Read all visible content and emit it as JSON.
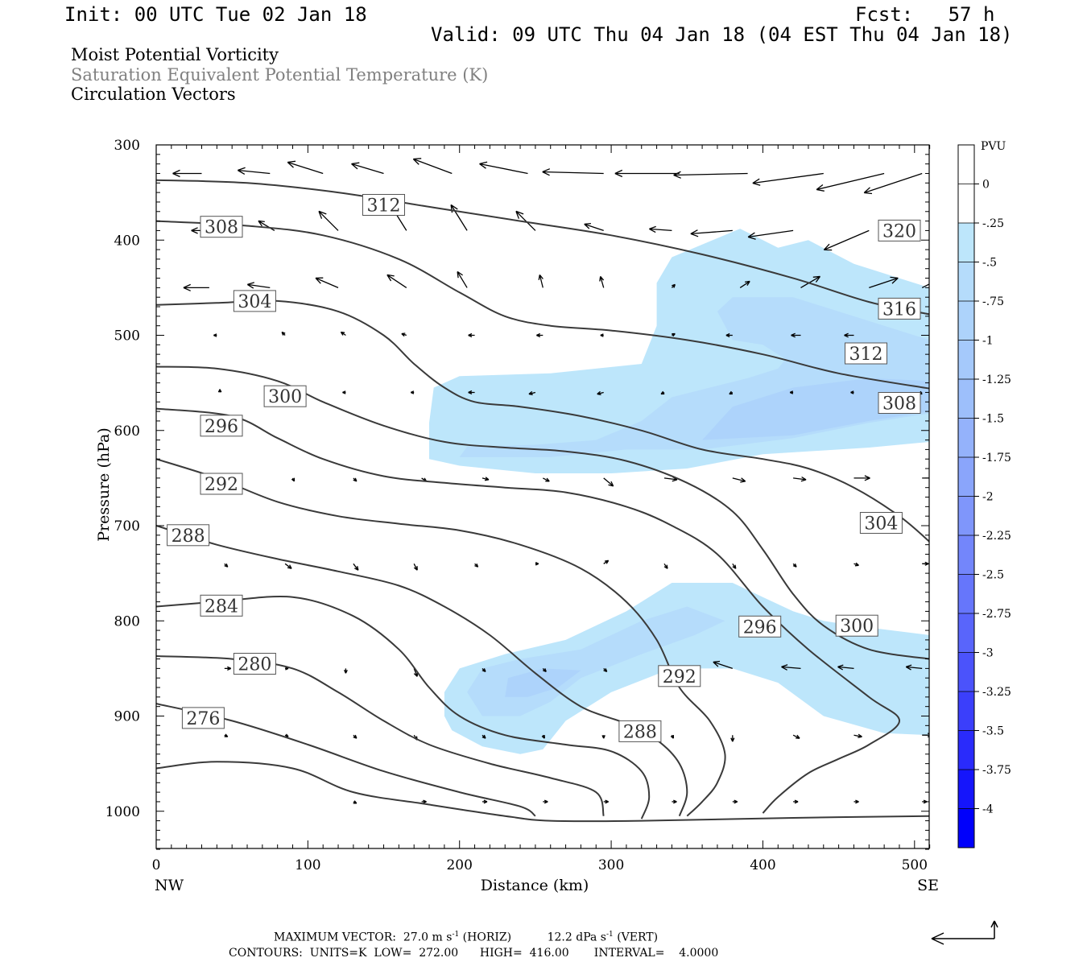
{
  "header": {
    "init": "Init: 00 UTC Tue 02 Jan 18",
    "fcst": "Fcst:   57 h",
    "valid": "Valid: 09 UTC Thu 04 Jan 18 (04 EST Thu 04 Jan 18)"
  },
  "titles": {
    "line1": "Moist Potential Vorticity",
    "line2": "Saturation Equivalent Potential Temperature (K)",
    "line3": "Circulation Vectors"
  },
  "chart_data": {
    "type": "contour",
    "xlabel": "Distance (km)",
    "ylabel": "Pressure (hPa)",
    "x_ticks": [
      "0",
      "100",
      "200",
      "300",
      "400",
      "500"
    ],
    "y_ticks": [
      "300",
      "400",
      "500",
      "600",
      "700",
      "800",
      "900",
      "1000"
    ],
    "xlim": [
      0,
      510
    ],
    "ylim": [
      300,
      1040
    ],
    "x_end_labels": {
      "left": "NW",
      "right": "SE"
    },
    "colorbar": {
      "unit": "PVU",
      "labels": [
        "0",
        "-.25",
        "-.5",
        "-.75",
        "-1",
        "-1.25",
        "-1.5",
        "-1.75",
        "-2",
        "-2.25",
        "-2.5",
        "-2.75",
        "-3",
        "-3.25",
        "-3.5",
        "-3.75",
        "-4"
      ],
      "colors": [
        "#ffffff",
        "#ffffff",
        "#bde6fb",
        "#b5dcfb",
        "#add3fb",
        "#a5c9fb",
        "#9dbffb",
        "#94b2fb",
        "#8aa5fb",
        "#7f96fb",
        "#7386fb",
        "#6676fb",
        "#5965fb",
        "#4b53fb",
        "#3b3ffb",
        "#2a2bfb",
        "#1515fb",
        "#0000fb"
      ]
    },
    "contour_labels": [
      {
        "text": "312",
        "x": 150,
        "p": 363
      },
      {
        "text": "308",
        "x": 43,
        "p": 386
      },
      {
        "text": "304",
        "x": 65,
        "p": 464
      },
      {
        "text": "300",
        "x": 85,
        "p": 564
      },
      {
        "text": "296",
        "x": 43,
        "p": 595
      },
      {
        "text": "292",
        "x": 43,
        "p": 656
      },
      {
        "text": "288",
        "x": 21,
        "p": 710
      },
      {
        "text": "284",
        "x": 43,
        "p": 784
      },
      {
        "text": "280",
        "x": 65,
        "p": 845
      },
      {
        "text": "276",
        "x": 31,
        "p": 902
      },
      {
        "text": "320",
        "x": 490,
        "p": 390
      },
      {
        "text": "316",
        "x": 490,
        "p": 472
      },
      {
        "text": "312",
        "x": 468,
        "p": 519
      },
      {
        "text": "308",
        "x": 490,
        "p": 571
      },
      {
        "text": "304",
        "x": 478,
        "p": 697
      },
      {
        "text": "300",
        "x": 462,
        "p": 805
      },
      {
        "text": "296",
        "x": 398,
        "p": 806
      },
      {
        "text": "292",
        "x": 345,
        "p": 858
      },
      {
        "text": "288",
        "x": 319,
        "p": 916
      }
    ],
    "contours": [
      {
        "level": 312,
        "pts": [
          [
            0,
            337
          ],
          [
            60,
            340
          ],
          [
            120,
            350
          ],
          [
            180,
            365
          ],
          [
            240,
            380
          ],
          [
            300,
            395
          ],
          [
            360,
            415
          ],
          [
            420,
            440
          ],
          [
            470,
            465
          ],
          [
            510,
            478
          ]
        ]
      },
      {
        "level": 308,
        "pts": [
          [
            0,
            380
          ],
          [
            60,
            385
          ],
          [
            110,
            395
          ],
          [
            160,
            420
          ],
          [
            200,
            455
          ],
          [
            230,
            480
          ],
          [
            260,
            490
          ],
          [
            300,
            495
          ],
          [
            350,
            505
          ],
          [
            400,
            520
          ],
          [
            450,
            540
          ],
          [
            510,
            556
          ]
        ]
      },
      {
        "level": 304,
        "pts": [
          [
            0,
            468
          ],
          [
            40,
            466
          ],
          [
            80,
            464
          ],
          [
            120,
            475
          ],
          [
            150,
            500
          ],
          [
            170,
            530
          ],
          [
            190,
            555
          ],
          [
            210,
            570
          ],
          [
            240,
            575
          ],
          [
            280,
            585
          ],
          [
            320,
            600
          ],
          [
            360,
            620
          ],
          [
            400,
            630
          ],
          [
            430,
            640
          ],
          [
            460,
            660
          ],
          [
            490,
            690
          ],
          [
            510,
            717
          ]
        ]
      },
      {
        "level": 300,
        "pts": [
          [
            0,
            533
          ],
          [
            40,
            535
          ],
          [
            80,
            548
          ],
          [
            110,
            570
          ],
          [
            150,
            595
          ],
          [
            190,
            612
          ],
          [
            230,
            618
          ],
          [
            270,
            622
          ],
          [
            310,
            632
          ],
          [
            350,
            655
          ],
          [
            380,
            685
          ],
          [
            400,
            725
          ],
          [
            420,
            772
          ],
          [
            440,
            805
          ],
          [
            470,
            830
          ],
          [
            510,
            840
          ]
        ]
      },
      {
        "level": 296,
        "pts": [
          [
            0,
            577
          ],
          [
            50,
            585
          ],
          [
            80,
            608
          ],
          [
            110,
            630
          ],
          [
            150,
            648
          ],
          [
            190,
            655
          ],
          [
            230,
            660
          ],
          [
            270,
            665
          ],
          [
            310,
            680
          ],
          [
            340,
            700
          ],
          [
            370,
            730
          ],
          [
            400,
            785
          ],
          [
            430,
            830
          ],
          [
            470,
            880
          ],
          [
            490,
            905
          ],
          [
            470,
            930
          ],
          [
            450,
            945
          ],
          [
            430,
            960
          ],
          [
            410,
            985
          ],
          [
            400,
            1002
          ]
        ]
      },
      {
        "level": 292,
        "pts": [
          [
            0,
            630
          ],
          [
            40,
            650
          ],
          [
            80,
            675
          ],
          [
            120,
            690
          ],
          [
            160,
            698
          ],
          [
            200,
            705
          ],
          [
            240,
            720
          ],
          [
            280,
            745
          ],
          [
            310,
            780
          ],
          [
            330,
            820
          ],
          [
            345,
            870
          ],
          [
            365,
            905
          ],
          [
            375,
            940
          ],
          [
            370,
            970
          ],
          [
            360,
            990
          ],
          [
            350,
            1005
          ]
        ]
      },
      {
        "level": 288,
        "pts": [
          [
            0,
            700
          ],
          [
            40,
            720
          ],
          [
            80,
            735
          ],
          [
            120,
            748
          ],
          [
            160,
            763
          ],
          [
            190,
            785
          ],
          [
            220,
            815
          ],
          [
            250,
            855
          ],
          [
            280,
            890
          ],
          [
            310,
            908
          ],
          [
            330,
            925
          ],
          [
            345,
            950
          ],
          [
            350,
            980
          ],
          [
            345,
            1005
          ]
        ]
      },
      {
        "level": 284,
        "pts": [
          [
            0,
            785
          ],
          [
            40,
            780
          ],
          [
            90,
            775
          ],
          [
            130,
            795
          ],
          [
            160,
            830
          ],
          [
            180,
            870
          ],
          [
            200,
            900
          ],
          [
            230,
            920
          ],
          [
            270,
            930
          ],
          [
            300,
            937
          ],
          [
            320,
            958
          ],
          [
            325,
            985
          ],
          [
            320,
            1008
          ]
        ]
      },
      {
        "level": 280,
        "pts": [
          [
            0,
            837
          ],
          [
            50,
            840
          ],
          [
            90,
            850
          ],
          [
            120,
            875
          ],
          [
            150,
            905
          ],
          [
            180,
            930
          ],
          [
            220,
            950
          ],
          [
            260,
            965
          ],
          [
            290,
            980
          ],
          [
            295,
            1005
          ]
        ]
      },
      {
        "level": 276,
        "pts": [
          [
            0,
            887
          ],
          [
            50,
            905
          ],
          [
            100,
            930
          ],
          [
            150,
            958
          ],
          [
            200,
            980
          ],
          [
            240,
            995
          ],
          [
            250,
            1005
          ]
        ]
      },
      {
        "level": 272,
        "pts": [
          [
            0,
            955
          ],
          [
            40,
            948
          ],
          [
            90,
            955
          ],
          [
            130,
            980
          ],
          [
            180,
            993
          ],
          [
            230,
            1005
          ],
          [
            260,
            1010
          ],
          [
            320,
            1010
          ],
          [
            420,
            1007
          ],
          [
            510,
            1005
          ]
        ]
      }
    ],
    "pv_regions": [
      {
        "value": -0.25,
        "pts": [
          [
            180,
            592
          ],
          [
            183,
            555
          ],
          [
            200,
            543
          ],
          [
            260,
            540
          ],
          [
            320,
            530
          ],
          [
            330,
            490
          ],
          [
            330,
            445
          ],
          [
            340,
            418
          ],
          [
            370,
            398
          ],
          [
            385,
            388
          ],
          [
            410,
            408
          ],
          [
            430,
            400
          ],
          [
            460,
            425
          ],
          [
            490,
            440
          ],
          [
            510,
            450
          ],
          [
            510,
            612
          ],
          [
            470,
            618
          ],
          [
            400,
            625
          ],
          [
            350,
            640
          ],
          [
            300,
            645
          ],
          [
            250,
            645
          ],
          [
            200,
            637
          ],
          [
            180,
            630
          ]
        ]
      },
      {
        "value": -0.5,
        "pts": [
          [
            200,
            628
          ],
          [
            205,
            617
          ],
          [
            250,
            615
          ],
          [
            290,
            610
          ],
          [
            320,
            590
          ],
          [
            340,
            565
          ],
          [
            390,
            545
          ],
          [
            410,
            535
          ],
          [
            415,
            525
          ],
          [
            400,
            510
          ],
          [
            380,
            505
          ],
          [
            370,
            475
          ],
          [
            380,
            460
          ],
          [
            420,
            460
          ],
          [
            460,
            480
          ],
          [
            510,
            505
          ],
          [
            510,
            582
          ],
          [
            470,
            592
          ],
          [
            420,
            608
          ],
          [
            360,
            620
          ],
          [
            310,
            620
          ],
          [
            260,
            628
          ]
        ]
      },
      {
        "value": -0.75,
        "pts": [
          [
            360,
            610
          ],
          [
            380,
            575
          ],
          [
            420,
            555
          ],
          [
            470,
            545
          ],
          [
            510,
            548
          ],
          [
            510,
            580
          ],
          [
            470,
            590
          ],
          [
            420,
            605
          ]
        ]
      },
      {
        "value": -0.25,
        "pts": [
          [
            190,
            900
          ],
          [
            190,
            875
          ],
          [
            200,
            850
          ],
          [
            230,
            835
          ],
          [
            270,
            820
          ],
          [
            310,
            790
          ],
          [
            340,
            760
          ],
          [
            380,
            760
          ],
          [
            400,
            775
          ],
          [
            420,
            790
          ],
          [
            440,
            800
          ],
          [
            460,
            805
          ],
          [
            510,
            815
          ],
          [
            510,
            920
          ],
          [
            480,
            918
          ],
          [
            440,
            900
          ],
          [
            410,
            865
          ],
          [
            380,
            850
          ],
          [
            340,
            850
          ],
          [
            300,
            875
          ],
          [
            270,
            905
          ],
          [
            255,
            935
          ],
          [
            240,
            940
          ],
          [
            215,
            932
          ],
          [
            195,
            915
          ]
        ]
      },
      {
        "value": -0.5,
        "pts": [
          [
            205,
            875
          ],
          [
            215,
            850
          ],
          [
            240,
            840
          ],
          [
            280,
            830
          ],
          [
            320,
            800
          ],
          [
            350,
            785
          ],
          [
            375,
            800
          ],
          [
            355,
            815
          ],
          [
            320,
            835
          ],
          [
            280,
            860
          ],
          [
            260,
            885
          ],
          [
            240,
            900
          ],
          [
            215,
            900
          ]
        ]
      },
      {
        "value": -0.75,
        "pts": [
          [
            230,
            880
          ],
          [
            232,
            860
          ],
          [
            255,
            850
          ],
          [
            280,
            852
          ],
          [
            265,
            870
          ],
          [
            245,
            880
          ]
        ]
      }
    ]
  },
  "footer": {
    "max_vector_label": "MAXIMUM VECTOR:",
    "horiz_value": "27.0",
    "horiz_unit_pre": "m s",
    "horiz_suffix": "(HORIZ)",
    "vert_value": "12.2",
    "vert_unit_pre": "dPa s",
    "vert_suffix": "(VERT)",
    "exponent": "-1",
    "contours_line": "CONTOURS:  UNITS=K  LOW=  272.00      HIGH=  416.00       INTERVAL=    4.0000"
  }
}
